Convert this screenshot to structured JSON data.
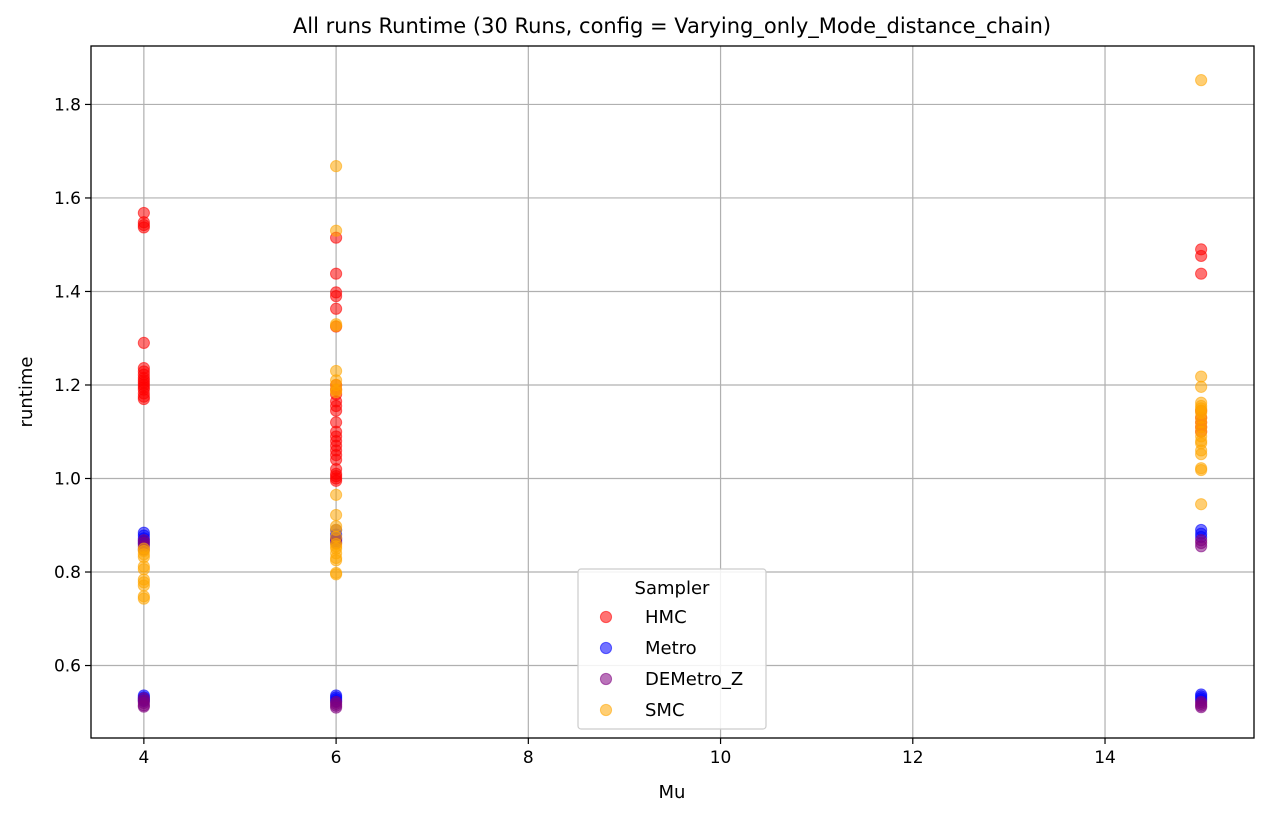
{
  "chart_data": {
    "type": "scatter",
    "title": "All runs Runtime (30 Runs, config = Varying_only_Mode_distance_chain)",
    "xlabel": "Mu",
    "ylabel": "runtime",
    "xlim": [
      3.45,
      15.55
    ],
    "ylim": [
      0.445,
      1.925
    ],
    "xticks": [
      4,
      6,
      8,
      10,
      12,
      14
    ],
    "yticks": [
      0.6,
      0.8,
      1.0,
      1.2,
      1.4,
      1.6,
      1.8
    ],
    "xtick_labels": [
      "4",
      "6",
      "8",
      "10",
      "12",
      "14"
    ],
    "ytick_labels": [
      "0.6",
      "0.8",
      "1.0",
      "1.2",
      "1.4",
      "1.6",
      "1.8"
    ],
    "grid": true,
    "legend_title": "Sampler",
    "legend_position": "lower center",
    "point_alpha": 0.55,
    "series": [
      {
        "name": "HMC",
        "color": "#ff0000",
        "points": [
          [
            4,
            1.568
          ],
          [
            4,
            1.548
          ],
          [
            4,
            1.542
          ],
          [
            4,
            1.537
          ],
          [
            4,
            1.29
          ],
          [
            4,
            1.236
          ],
          [
            4,
            1.229
          ],
          [
            4,
            1.222
          ],
          [
            4,
            1.215
          ],
          [
            4,
            1.21
          ],
          [
            4,
            1.205
          ],
          [
            4,
            1.2
          ],
          [
            4,
            1.195
          ],
          [
            4,
            1.19
          ],
          [
            4,
            1.182
          ],
          [
            4,
            1.175
          ],
          [
            4,
            1.17
          ],
          [
            6,
            1.515
          ],
          [
            6,
            1.438
          ],
          [
            6,
            1.398
          ],
          [
            6,
            1.39
          ],
          [
            6,
            1.363
          ],
          [
            6,
            1.325
          ],
          [
            6,
            1.2
          ],
          [
            6,
            1.19
          ],
          [
            6,
            1.18
          ],
          [
            6,
            1.165
          ],
          [
            6,
            1.155
          ],
          [
            6,
            1.145
          ],
          [
            6,
            1.12
          ],
          [
            6,
            1.1
          ],
          [
            6,
            1.09
          ],
          [
            6,
            1.08
          ],
          [
            6,
            1.07
          ],
          [
            6,
            1.06
          ],
          [
            6,
            1.05
          ],
          [
            6,
            1.04
          ],
          [
            6,
            1.02
          ],
          [
            6,
            1.01
          ],
          [
            6,
            1.005
          ],
          [
            6,
            1.0
          ],
          [
            6,
            0.995
          ],
          [
            15,
            1.49
          ],
          [
            15,
            1.476
          ],
          [
            15,
            1.438
          ],
          [
            15,
            1.145
          ],
          [
            15,
            1.13
          ],
          [
            15,
            1.12
          ],
          [
            15,
            1.11
          ],
          [
            15,
            1.1
          ]
        ]
      },
      {
        "name": "Metro",
        "color": "#0000ff",
        "points": [
          [
            4,
            0.884
          ],
          [
            4,
            0.878
          ],
          [
            4,
            0.872
          ],
          [
            4,
            0.866
          ],
          [
            4,
            0.86
          ],
          [
            4,
            0.536
          ],
          [
            4,
            0.532
          ],
          [
            4,
            0.528
          ],
          [
            4,
            0.524
          ],
          [
            6,
            0.89
          ],
          [
            6,
            0.88
          ],
          [
            6,
            0.872
          ],
          [
            6,
            0.866
          ],
          [
            6,
            0.536
          ],
          [
            6,
            0.532
          ],
          [
            6,
            0.528
          ],
          [
            6,
            0.524
          ],
          [
            15,
            0.89
          ],
          [
            15,
            0.882
          ],
          [
            15,
            0.875
          ],
          [
            15,
            0.538
          ],
          [
            15,
            0.534
          ],
          [
            15,
            0.53
          ],
          [
            15,
            0.526
          ]
        ]
      },
      {
        "name": "DEMetro_Z",
        "color": "#800080",
        "points": [
          [
            4,
            0.868
          ],
          [
            4,
            0.862
          ],
          [
            4,
            0.855
          ],
          [
            4,
            0.848
          ],
          [
            4,
            0.53
          ],
          [
            4,
            0.525
          ],
          [
            4,
            0.52
          ],
          [
            4,
            0.515
          ],
          [
            4,
            0.512
          ],
          [
            6,
            0.87
          ],
          [
            6,
            0.862
          ],
          [
            6,
            0.522
          ],
          [
            6,
            0.518
          ],
          [
            6,
            0.514
          ],
          [
            6,
            0.51
          ],
          [
            15,
            0.868
          ],
          [
            15,
            0.862
          ],
          [
            15,
            0.855
          ],
          [
            15,
            0.522
          ],
          [
            15,
            0.518
          ],
          [
            15,
            0.514
          ],
          [
            15,
            0.511
          ]
        ]
      },
      {
        "name": "SMC",
        "color": "#ffa500",
        "points": [
          [
            4,
            0.85
          ],
          [
            4,
            0.845
          ],
          [
            4,
            0.838
          ],
          [
            4,
            0.832
          ],
          [
            4,
            0.812
          ],
          [
            4,
            0.806
          ],
          [
            4,
            0.784
          ],
          [
            4,
            0.778
          ],
          [
            4,
            0.771
          ],
          [
            4,
            0.748
          ],
          [
            4,
            0.743
          ],
          [
            6,
            1.668
          ],
          [
            6,
            1.53
          ],
          [
            6,
            1.33
          ],
          [
            6,
            1.326
          ],
          [
            6,
            1.23
          ],
          [
            6,
            1.21
          ],
          [
            6,
            1.2
          ],
          [
            6,
            1.19
          ],
          [
            6,
            1.185
          ],
          [
            6,
            0.965
          ],
          [
            6,
            0.922
          ],
          [
            6,
            0.898
          ],
          [
            6,
            0.89
          ],
          [
            6,
            0.875
          ],
          [
            6,
            0.86
          ],
          [
            6,
            0.855
          ],
          [
            6,
            0.85
          ],
          [
            6,
            0.84
          ],
          [
            6,
            0.83
          ],
          [
            6,
            0.825
          ],
          [
            6,
            0.798
          ],
          [
            6,
            0.795
          ],
          [
            15,
            1.852
          ],
          [
            15,
            1.218
          ],
          [
            15,
            1.196
          ],
          [
            15,
            1.162
          ],
          [
            15,
            1.155
          ],
          [
            15,
            1.15
          ],
          [
            15,
            1.145
          ],
          [
            15,
            1.14
          ],
          [
            15,
            1.13
          ],
          [
            15,
            1.12
          ],
          [
            15,
            1.11
          ],
          [
            15,
            1.1
          ],
          [
            15,
            1.09
          ],
          [
            15,
            1.08
          ],
          [
            15,
            1.075
          ],
          [
            15,
            1.06
          ],
          [
            15,
            1.052
          ],
          [
            15,
            1.022
          ],
          [
            15,
            1.018
          ],
          [
            15,
            0.945
          ]
        ]
      }
    ]
  }
}
